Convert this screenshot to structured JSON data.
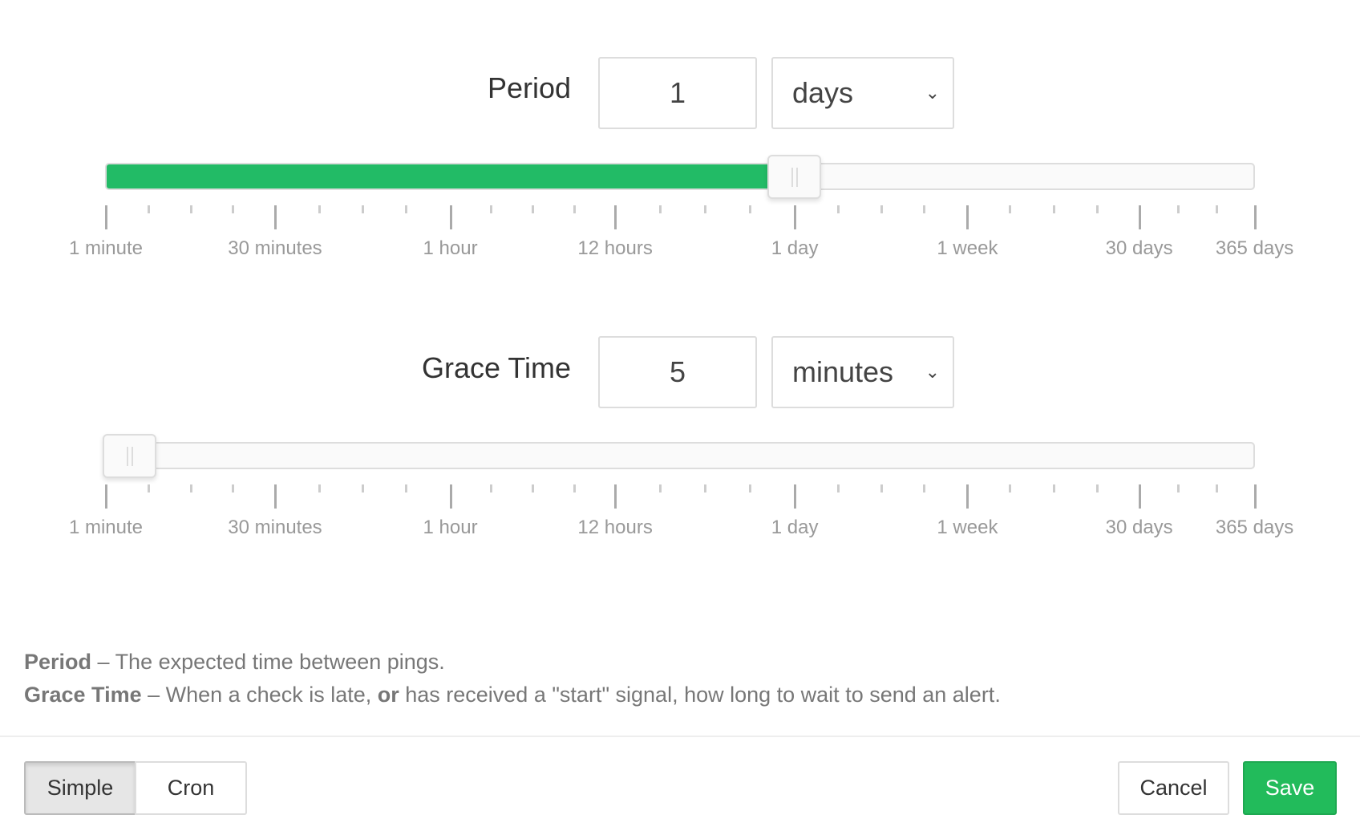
{
  "period": {
    "label": "Period",
    "value": "1",
    "unit": "days",
    "slider_value": "1 day"
  },
  "grace": {
    "label": "Grace Time",
    "value": "5",
    "unit": "minutes",
    "slider_value": "5 minutes"
  },
  "tick_labels": [
    "1 minute",
    "30 minutes",
    "1 hour",
    "12 hours",
    "1 day",
    "1 week",
    "30 days",
    "365 days"
  ],
  "help": {
    "period_term": "Period",
    "period_text": " – The expected time between pings.",
    "grace_term": "Grace Time",
    "grace_text1": " – When a check is late, ",
    "grace_or": "or",
    "grace_text2": " has received a \"start\" signal, how long to wait to send an alert."
  },
  "footer": {
    "simple": "Simple",
    "cron": "Cron",
    "cancel": "Cancel",
    "save": "Save"
  },
  "colors": {
    "accent": "#22bb66",
    "save": "#22bb5b"
  },
  "icons": {
    "select": "chevron-down-icon",
    "thumb": "slider-grip-icon"
  }
}
